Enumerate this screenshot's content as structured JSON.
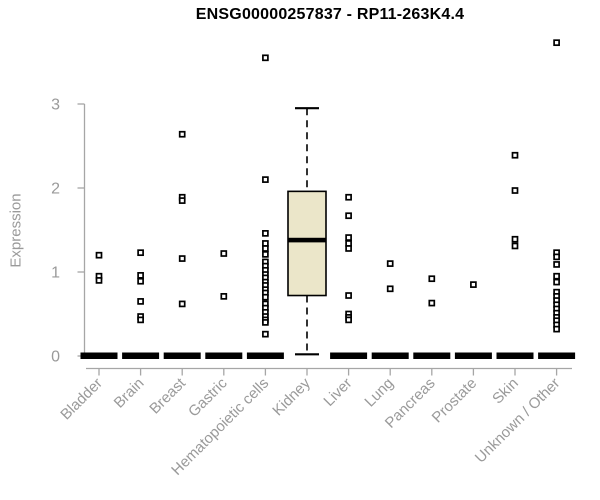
{
  "title": "ENSG00000257837 - RP11-263K4.4",
  "colors": {
    "title_text": "#000000",
    "axis_line": "#a6a6a6",
    "tick_text": "#9a9a9a",
    "box_fill": "#ebe6c9",
    "box_border": "#000000",
    "median_line": "#000000",
    "zero_bar": "#000000",
    "point_stroke": "#000000",
    "point_fill": "#ffffff",
    "background": "#ffffff"
  },
  "chart_data": {
    "type": "boxplot",
    "title": "ENSG00000257837 - RP11-263K4.4",
    "xlabel": "",
    "ylabel": "Expression",
    "ylim": [
      0,
      3
    ],
    "yticks": [
      0,
      1,
      2,
      3
    ],
    "grid": false,
    "legend": "none",
    "categories": [
      {
        "label": "Bladder",
        "box": {
          "flat": true,
          "value": 0
        },
        "points": [
          1.2,
          0.95,
          0.9
        ]
      },
      {
        "label": "Brain",
        "box": {
          "flat": true,
          "value": 0
        },
        "points": [
          1.23,
          0.96,
          0.89,
          0.65,
          0.47,
          0.43
        ]
      },
      {
        "label": "Breast",
        "box": {
          "flat": true,
          "value": 0
        },
        "points": [
          2.64,
          1.89,
          1.85,
          1.16,
          0.62
        ]
      },
      {
        "label": "Gastric",
        "box": {
          "flat": true,
          "value": 0
        },
        "points": [
          1.22,
          0.71
        ]
      },
      {
        "label": "Hematopoietic cells",
        "box": {
          "flat": true,
          "value": 0
        },
        "points": [
          3.55,
          2.1,
          1.46,
          1.34,
          1.28,
          1.21,
          1.12,
          1.07,
          1.02,
          0.97,
          0.93,
          0.88,
          0.84,
          0.79,
          0.75,
          0.7,
          0.62,
          0.57,
          0.52,
          0.47,
          0.43,
          0.4,
          0.26
        ]
      },
      {
        "label": "Kidney",
        "box": {
          "flat": false,
          "whisker_low": 0.02,
          "q1": 0.72,
          "median": 1.38,
          "q3": 1.96,
          "whisker_high": 2.95
        },
        "points": []
      },
      {
        "label": "Liver",
        "box": {
          "flat": true,
          "value": 0
        },
        "points": [
          1.89,
          1.67,
          1.41,
          1.34,
          1.28,
          0.72,
          0.5,
          0.46,
          0.43
        ]
      },
      {
        "label": "Lung",
        "box": {
          "flat": true,
          "value": 0
        },
        "points": [
          1.1,
          0.8
        ]
      },
      {
        "label": "Pancreas",
        "box": {
          "flat": true,
          "value": 0
        },
        "points": [
          0.92,
          0.63
        ]
      },
      {
        "label": "Prostate",
        "box": {
          "flat": true,
          "value": 0
        },
        "points": [
          0.85
        ]
      },
      {
        "label": "Skin",
        "box": {
          "flat": true,
          "value": 0
        },
        "points": [
          2.39,
          1.97,
          1.39,
          1.31
        ]
      },
      {
        "label": "Unknown / Other",
        "box": {
          "flat": true,
          "value": 0
        },
        "points": [
          3.73,
          1.23,
          1.18,
          1.09,
          0.95,
          0.88,
          0.76,
          0.71,
          0.66,
          0.61,
          0.56,
          0.51,
          0.46,
          0.42,
          0.37,
          0.32
        ]
      }
    ]
  }
}
